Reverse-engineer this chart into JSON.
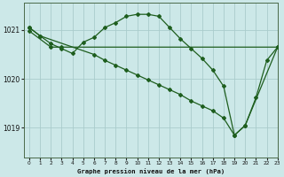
{
  "title": "Graphe pression niveau de la mer (hPa)",
  "bg_color": "#cce8e8",
  "grid_color": "#aacccc",
  "line_color": "#1e5e1e",
  "xlim": [
    -0.5,
    23
  ],
  "ylim": [
    1018.4,
    1021.55
  ],
  "yticks": [
    1019,
    1020,
    1021
  ],
  "xticks": [
    0,
    1,
    2,
    3,
    4,
    5,
    6,
    7,
    8,
    9,
    10,
    11,
    12,
    13,
    14,
    15,
    16,
    17,
    18,
    19,
    20,
    21,
    22,
    23
  ],
  "series": [
    {
      "x": [
        0,
        2,
        3,
        23
      ],
      "y": [
        1020.98,
        1020.65,
        1020.65,
        1020.65
      ]
    },
    {
      "x": [
        0,
        1,
        2,
        3,
        4,
        5,
        6,
        7,
        8,
        9,
        10,
        11,
        12,
        13,
        14,
        15,
        16,
        17,
        18,
        19,
        20,
        21,
        22,
        23
      ],
      "y": [
        1021.05,
        1020.88,
        1020.72,
        1020.62,
        1020.52,
        1020.75,
        1020.85,
        1021.05,
        1021.15,
        1021.28,
        1021.32,
        1021.32,
        1021.28,
        1021.05,
        1020.82,
        1020.62,
        1020.42,
        1020.18,
        1019.85,
        1018.85,
        1019.05,
        1019.62,
        1020.38,
        1020.65
      ]
    },
    {
      "x": [
        0,
        1,
        6,
        7,
        8,
        9,
        10,
        11,
        12,
        13,
        14,
        15,
        16,
        17,
        18,
        19,
        20,
        23
      ],
      "y": [
        1021.05,
        1020.88,
        1020.5,
        1020.38,
        1020.28,
        1020.18,
        1020.08,
        1019.98,
        1019.88,
        1019.78,
        1019.68,
        1019.55,
        1019.45,
        1019.35,
        1019.2,
        1018.85,
        1019.05,
        1020.65
      ]
    }
  ]
}
